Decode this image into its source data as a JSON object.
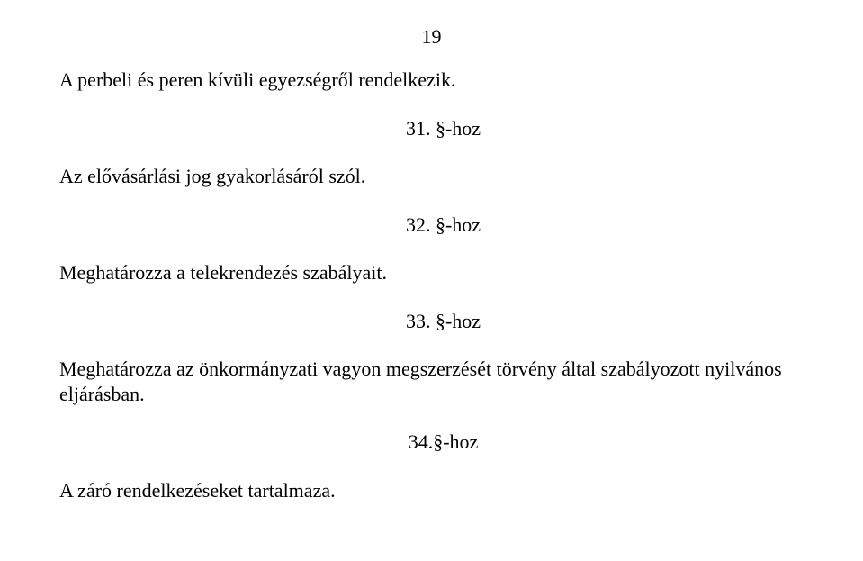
{
  "pageNumber": "19",
  "para1": "A perbeli és peren kívüli egyezségről rendelkezik.",
  "head1": "31. §-hoz",
  "para2": "Az elővásárlási jog gyakorlásáról szól.",
  "head2": "32. §-hoz",
  "para3": "Meghatározza a telekrendezés szabályait.",
  "head3": "33. §-hoz",
  "para4": "Meghatározza  az önkormányzati vagyon megszerzését törvény által szabályozott nyilvános eljárásban.",
  "head4": "34.§-hoz",
  "para5": "A záró rendelkezéseket tartalmaza."
}
